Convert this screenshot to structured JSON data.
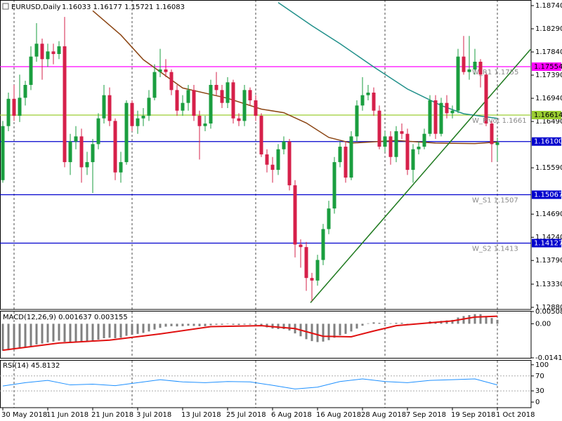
{
  "chart_data": [
    {
      "type": "candlestick",
      "title": "EURUSD,Daily",
      "quote": "1.16033 1.16177 1.15721 1.16083",
      "categories": [
        "30 May 2018",
        null,
        null,
        null,
        null,
        null,
        null,
        null,
        "11 Jun 2018",
        null,
        null,
        null,
        null,
        null,
        null,
        null,
        "21 Jun 2018",
        null,
        null,
        null,
        null,
        null,
        null,
        null,
        "3 Jul 2018",
        null,
        null,
        null,
        null,
        null,
        null,
        null,
        "13 Jul 2018",
        null,
        null,
        null,
        null,
        null,
        null,
        null,
        "25 Jul 2018",
        null,
        null,
        null,
        null,
        null,
        null,
        null,
        "6 Aug 2018",
        null,
        null,
        null,
        null,
        null,
        null,
        null,
        "16 Aug 2018",
        null,
        null,
        null,
        null,
        null,
        null,
        null,
        "28 Aug 2018",
        null,
        null,
        null,
        null,
        null,
        null,
        null,
        "7 Sep 2018",
        null,
        null,
        null,
        null,
        null,
        null,
        null,
        "19 Sep 2018",
        null,
        null,
        null,
        null,
        null,
        null,
        null,
        "1 Oct 2018"
      ],
      "open": [
        1.1535,
        1.164,
        1.1693,
        1.166,
        1.1695,
        1.172,
        1.1775,
        1.18,
        1.177,
        1.1785,
        1.178,
        1.1795,
        1.157,
        1.161,
        1.162,
        1.156,
        1.157,
        1.1605,
        1.1655,
        1.17,
        1.165,
        1.155,
        1.157,
        1.1685,
        1.164,
        1.1655,
        1.166,
        1.1695,
        1.1745,
        1.175,
        1.1745,
        1.171,
        1.167,
        1.1685,
        1.171,
        1.166,
        1.164,
        1.1645,
        1.172,
        1.171,
        1.1685,
        1.1725,
        1.1655,
        1.165,
        1.171,
        1.169,
        1.166,
        1.1585,
        1.1565,
        1.1555,
        1.1595,
        1.161,
        1.1525,
        1.141,
        1.1405,
        1.1345,
        1.134,
        1.138,
        1.144,
        1.148,
        1.157,
        1.16,
        1.154,
        1.162,
        1.168,
        1.17,
        1.1705,
        1.167,
        1.16,
        1.162,
        1.158,
        1.163,
        1.1625,
        1.1555,
        1.1595,
        1.16,
        1.1625,
        1.169,
        1.1625,
        1.1685,
        1.1665,
        1.167,
        1.1775,
        1.1745,
        1.175,
        1.1765,
        1.174,
        1.1645,
        1.16033
      ],
      "high": [
        1.165,
        1.1705,
        1.172,
        1.174,
        1.1728,
        1.1795,
        1.184,
        1.181,
        1.18,
        1.18,
        1.1805,
        1.1852,
        1.1625,
        1.164,
        1.1635,
        1.159,
        1.1615,
        1.1665,
        1.172,
        1.1715,
        1.1655,
        1.159,
        1.169,
        1.169,
        1.167,
        1.1675,
        1.171,
        1.176,
        1.179,
        1.177,
        1.175,
        1.172,
        1.17,
        1.172,
        1.172,
        1.167,
        1.166,
        1.173,
        1.1745,
        1.172,
        1.1735,
        1.173,
        1.1665,
        1.172,
        1.1715,
        1.17,
        1.1665,
        1.1595,
        1.158,
        1.1605,
        1.162,
        1.1615,
        1.1535,
        1.142,
        1.1415,
        1.1355,
        1.139,
        1.145,
        1.1495,
        1.158,
        1.161,
        1.161,
        1.163,
        1.169,
        1.1735,
        1.172,
        1.1715,
        1.168,
        1.163,
        1.163,
        1.164,
        1.1645,
        1.1635,
        1.1605,
        1.161,
        1.1635,
        1.17,
        1.17,
        1.1695,
        1.17,
        1.168,
        1.179,
        1.1815,
        1.1815,
        1.179,
        1.177,
        1.1745,
        1.165,
        1.16177
      ],
      "low": [
        1.153,
        1.163,
        1.165,
        1.1648,
        1.168,
        1.171,
        1.1765,
        1.173,
        1.1755,
        1.176,
        1.177,
        1.156,
        1.1545,
        1.1595,
        1.153,
        1.1545,
        1.151,
        1.1595,
        1.1645,
        1.164,
        1.1535,
        1.153,
        1.1565,
        1.163,
        1.1625,
        1.164,
        1.165,
        1.169,
        1.1735,
        1.1735,
        1.17,
        1.166,
        1.166,
        1.167,
        1.165,
        1.1575,
        1.163,
        1.1635,
        1.17,
        1.1675,
        1.1675,
        1.1645,
        1.164,
        1.164,
        1.168,
        1.165,
        1.158,
        1.155,
        1.153,
        1.1545,
        1.1585,
        1.1515,
        1.1385,
        1.1365,
        1.132,
        1.13,
        1.133,
        1.137,
        1.143,
        1.147,
        1.156,
        1.153,
        1.1535,
        1.161,
        1.167,
        1.169,
        1.166,
        1.1595,
        1.159,
        1.1565,
        1.157,
        1.1615,
        1.1545,
        1.153,
        1.1585,
        1.1595,
        1.162,
        1.1615,
        1.162,
        1.1655,
        1.1655,
        1.1665,
        1.174,
        1.173,
        1.174,
        1.1715,
        1.164,
        1.157,
        1.15721
      ],
      "close": [
        1.164,
        1.1693,
        1.166,
        1.1695,
        1.172,
        1.1775,
        1.18,
        1.177,
        1.1785,
        1.178,
        1.1795,
        1.157,
        1.161,
        1.162,
        1.156,
        1.157,
        1.1605,
        1.1655,
        1.17,
        1.165,
        1.155,
        1.157,
        1.1685,
        1.164,
        1.1655,
        1.166,
        1.1695,
        1.1745,
        1.175,
        1.1745,
        1.171,
        1.167,
        1.1685,
        1.171,
        1.166,
        1.164,
        1.1645,
        1.172,
        1.171,
        1.1685,
        1.1725,
        1.1655,
        1.165,
        1.171,
        1.169,
        1.166,
        1.1585,
        1.1565,
        1.1555,
        1.1595,
        1.161,
        1.1525,
        1.141,
        1.1405,
        1.1345,
        1.134,
        1.138,
        1.144,
        1.148,
        1.157,
        1.16,
        1.154,
        1.162,
        1.168,
        1.17,
        1.1705,
        1.167,
        1.16,
        1.162,
        1.158,
        1.163,
        1.1625,
        1.1555,
        1.1595,
        1.16,
        1.1625,
        1.169,
        1.1625,
        1.1685,
        1.1665,
        1.167,
        1.1775,
        1.1745,
        1.175,
        1.1765,
        1.174,
        1.1645,
        1.1605,
        1.16083
      ],
      "up_color": "#1a9e3f",
      "down_color": "#d6204a",
      "xlim": [
        -0.5,
        94
      ],
      "ylim": [
        1.12839,
        1.18849
      ],
      "yticks": [
        {
          "value": 1.1874,
          "label": "1.18740"
        },
        {
          "value": 1.1829,
          "label": "1.18290"
        },
        {
          "value": 1.1784,
          "label": "1.17840"
        },
        {
          "value": 1.1739,
          "label": "1.17390"
        },
        {
          "value": 1.1694,
          "label": "1.16940"
        },
        {
          "value": 1.1649,
          "label": "1.16490"
        },
        {
          "value": 1.1559,
          "label": "1.15590"
        },
        {
          "value": 1.1469,
          "label": "1.14690"
        },
        {
          "value": 1.1424,
          "label": "1.14240"
        },
        {
          "value": 1.1379,
          "label": "1.13790"
        },
        {
          "value": 1.1333,
          "label": "1.13330"
        },
        {
          "value": 1.1288,
          "label": "1.12880"
        }
      ],
      "levels": [
        {
          "value": 1.17554,
          "label": "1.17554",
          "color": "#ff00ff",
          "text_color": "#000000",
          "note": "W_R1 1.1755"
        },
        {
          "value": 1.16614,
          "label": "1.16614",
          "color": "#9acd32",
          "text_color": "#000000",
          "note": "W_Pivot 1.1661"
        },
        {
          "value": 1.161,
          "label": "1.16100",
          "color": "#0000cd",
          "text_color": "#ffffff"
        },
        {
          "value": 1.15067,
          "label": "1.15067",
          "color": "#0000cd",
          "text_color": "#ffffff",
          "note": "W_S1 1.1507"
        },
        {
          "value": 1.14127,
          "label": "1.14127",
          "color": "#0000cd",
          "text_color": "#ffffff",
          "note": "W_S2 1.1413"
        }
      ],
      "lines": [
        {
          "color": "#8b4513",
          "x": [
            16,
            21,
            25,
            32,
            40,
            44,
            46,
            50,
            54,
            58,
            62,
            70,
            77,
            84,
            88
          ],
          "values": [
            1.1864,
            1.1817,
            1.1769,
            1.1714,
            1.1694,
            1.168,
            1.1673,
            1.1666,
            1.1646,
            1.1618,
            1.1607,
            1.1612,
            1.1607,
            1.1606,
            1.1609
          ]
        },
        {
          "color": "#20908a",
          "x": [
            49,
            55,
            60,
            66,
            72,
            78,
            82,
            88
          ],
          "values": [
            1.188,
            1.1835,
            1.18,
            1.1755,
            1.1712,
            1.168,
            1.1664,
            1.1655
          ]
        }
      ],
      "trendline": {
        "color": "#1f7a1f",
        "x": [
          54.75,
          93.9
        ],
        "values": [
          1.1297,
          1.1789
        ]
      },
      "separators": [
        2,
        23,
        45,
        68,
        88
      ]
    },
    {
      "type": "macd",
      "title": "MACD(12,26,9) 0.001637 0.003155",
      "values": [
        -0.0112,
        -0.011,
        -0.0107,
        -0.0102,
        -0.0098,
        -0.0092,
        -0.0086,
        -0.0082,
        -0.0078,
        -0.0074,
        -0.007,
        -0.0075,
        -0.0077,
        -0.0076,
        -0.0077,
        -0.0076,
        -0.0072,
        -0.0066,
        -0.006,
        -0.0058,
        -0.006,
        -0.0058,
        -0.005,
        -0.0046,
        -0.0042,
        -0.0038,
        -0.0032,
        -0.0024,
        -0.0017,
        -0.0012,
        -0.001,
        -0.0011,
        -0.001,
        -0.0008,
        -0.0009,
        -0.001,
        -0.001,
        -0.0006,
        -0.0004,
        -0.0004,
        -0.0002,
        -0.0004,
        -0.0005,
        -0.0003,
        -0.0003,
        -0.0005,
        -0.001,
        -0.0015,
        -0.002,
        -0.0022,
        -0.0022,
        -0.0028,
        -0.004,
        -0.0052,
        -0.0064,
        -0.0072,
        -0.0076,
        -0.0074,
        -0.0068,
        -0.0058,
        -0.0048,
        -0.0042,
        -0.0032,
        -0.002,
        -0.0008,
        0.0002,
        0.0006,
        0.0004,
        0.0004,
        0.0002,
        0.0004,
        0.0004,
        0.0,
        0.0,
        0.0002,
        0.0004,
        0.001,
        0.0008,
        0.0012,
        0.0014,
        0.0016,
        0.0026,
        0.0032,
        0.0036,
        0.004,
        0.004,
        0.0032,
        0.0024,
        0.001637
      ],
      "color": "#808080",
      "signal": {
        "color": "#e01010",
        "x": [
          0,
          10,
          19,
          28,
          37,
          46,
          52,
          57,
          62,
          66,
          70,
          80,
          84,
          88
        ],
        "values": [
          -0.011,
          -0.008,
          -0.0068,
          -0.0042,
          -0.0012,
          -0.0008,
          -0.002,
          -0.0052,
          -0.0054,
          -0.003,
          -0.0008,
          0.0012,
          0.0028,
          0.003155
        ]
      },
      "ylim": [
        -0.014165,
        0.005084
      ],
      "yticks": [
        0.005084,
        {
          "value": 0,
          "label": "0.00"
        },
        -0.014165
      ]
    },
    {
      "type": "line",
      "title": "RSI(14) 45.8132",
      "x": [
        0,
        4,
        8,
        12,
        16,
        20,
        24,
        28,
        32,
        36,
        40,
        44,
        48,
        52,
        56,
        60,
        64,
        68,
        72,
        76,
        80,
        84,
        88
      ],
      "values": [
        43,
        52,
        58,
        46,
        48,
        44,
        52,
        60,
        54,
        52,
        55,
        54,
        45,
        35,
        40,
        55,
        62,
        55,
        52,
        58,
        60,
        62,
        45.8132
      ],
      "color": "#1e90ff",
      "ylim": [
        -15,
        111
      ],
      "yticks": [
        100,
        70,
        30,
        0
      ],
      "levels": [
        70,
        30
      ]
    }
  ]
}
